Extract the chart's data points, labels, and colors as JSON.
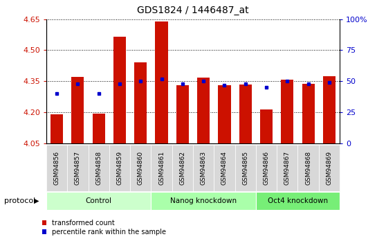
{
  "title": "GDS1824 / 1446487_at",
  "samples": [
    "GSM94856",
    "GSM94857",
    "GSM94858",
    "GSM94859",
    "GSM94860",
    "GSM94861",
    "GSM94862",
    "GSM94863",
    "GSM94864",
    "GSM94865",
    "GSM94866",
    "GSM94867",
    "GSM94868",
    "GSM94869"
  ],
  "transformed_count": [
    4.19,
    4.37,
    4.195,
    4.565,
    4.44,
    4.64,
    4.33,
    4.368,
    4.33,
    4.335,
    4.215,
    4.357,
    4.337,
    4.375
  ],
  "percentile_rank_pct": [
    40,
    48,
    40,
    48,
    50,
    52,
    48,
    50,
    47,
    48,
    45,
    50,
    48,
    49
  ],
  "ylim_left": [
    4.05,
    4.65
  ],
  "ylim_right": [
    0,
    100
  ],
  "yticks_left": [
    4.05,
    4.2,
    4.35,
    4.5,
    4.65
  ],
  "yticks_right": [
    0,
    25,
    50,
    75,
    100
  ],
  "ytick_labels_right": [
    "0",
    "25",
    "50",
    "75",
    "100%"
  ],
  "bar_color": "#cc1100",
  "dot_color": "#0000cc",
  "baseline": 4.05,
  "groups": [
    {
      "label": "Control",
      "start": 0,
      "end": 5,
      "color": "#ccffcc"
    },
    {
      "label": "Nanog knockdown",
      "start": 5,
      "end": 10,
      "color": "#aaffaa"
    },
    {
      "label": "Oct4 knockdown",
      "start": 10,
      "end": 14,
      "color": "#77ee77"
    }
  ],
  "protocol_label": "protocol",
  "legend_items": [
    {
      "label": "transformed count",
      "color": "#cc1100"
    },
    {
      "label": "percentile rank within the sample",
      "color": "#0000cc"
    }
  ],
  "background_color": "#ffffff",
  "plot_bg_color": "#ffffff",
  "tick_label_color_left": "#cc1100",
  "tick_label_color_right": "#0000cc",
  "tick_bg_color": "#d8d8d8"
}
